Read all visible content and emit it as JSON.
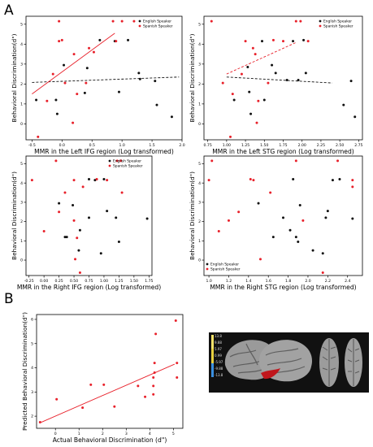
{
  "panel_labels": [
    "A",
    "B"
  ],
  "colors": {
    "english": "#111111",
    "spanish": "#e8202a",
    "fit_all": "#111111",
    "fit_spanish": "#e8202a",
    "brain_highlight": "#c0171d"
  },
  "colorbar": {
    "labels": [
      "13.8",
      "9.88",
      "5.97",
      "0.99",
      "-5.97",
      "-9.88",
      "-13.8"
    ]
  },
  "chart_data": [
    {
      "id": "ifg_left",
      "type": "scatter",
      "xlabel": "MMR in the Left IFG region (Log transformed)",
      "ylabel": "Behavioral Discrimination(d\")",
      "xlim": [
        -0.6,
        2.0
      ],
      "ylim": [
        -0.8,
        5.4
      ],
      "xticks": [
        -0.5,
        0.0,
        0.5,
        1.0,
        1.5,
        2.0
      ],
      "xticklabels": [
        "-0.5",
        "0.0",
        "0.5",
        "1.0",
        "1.5",
        "2.0"
      ],
      "yticks": [
        0,
        1,
        2,
        3,
        4,
        5
      ],
      "legend": {
        "position": "top-right",
        "entries": [
          "English Speaker",
          "Spanish Speaker"
        ]
      },
      "series": [
        {
          "name": "English Speaker",
          "color": "#111111",
          "points": [
            [
              -0.43,
              1.2
            ],
            [
              -0.1,
              1.2
            ],
            [
              -0.08,
              0.5
            ],
            [
              0.03,
              2.95
            ],
            [
              0.38,
              1.55
            ],
            [
              0.42,
              2.8
            ],
            [
              0.63,
              4.2
            ],
            [
              0.88,
              4.15
            ],
            [
              0.95,
              1.6
            ],
            [
              1.1,
              4.2
            ],
            [
              1.28,
              2.55
            ],
            [
              1.3,
              2.25
            ],
            [
              1.55,
              2.15
            ],
            [
              1.58,
              0.95
            ],
            [
              1.83,
              0.35
            ]
          ]
        },
        {
          "name": "Spanish Speaker",
          "color": "#e8202a",
          "points": [
            [
              -0.4,
              -0.65
            ],
            [
              -0.25,
              1.15
            ],
            [
              -0.15,
              2.5
            ],
            [
              -0.05,
              5.15
            ],
            [
              -0.05,
              4.15
            ],
            [
              0.0,
              4.2
            ],
            [
              0.05,
              2.05
            ],
            [
              0.18,
              0.05
            ],
            [
              0.2,
              3.5
            ],
            [
              0.25,
              1.5
            ],
            [
              0.4,
              2.05
            ],
            [
              0.45,
              3.8
            ],
            [
              0.53,
              3.6
            ],
            [
              0.85,
              5.15
            ],
            [
              0.9,
              4.15
            ],
            [
              1.0,
              5.15
            ],
            [
              1.2,
              5.15
            ]
          ]
        }
      ],
      "fits": [
        {
          "name": "All",
          "style": "dashed",
          "color": "#111111",
          "x": [
            -0.5,
            1.95
          ],
          "y": [
            2.08,
            2.35
          ]
        },
        {
          "name": "Spanish",
          "style": "solid",
          "color": "#e8202a",
          "x": [
            -0.5,
            0.88
          ],
          "y": [
            1.5,
            4.55
          ]
        }
      ]
    },
    {
      "id": "stg_left",
      "type": "scatter",
      "xlabel": "MMR in the Left STG region (Log transformed)",
      "ylabel": "Behavioral Discrimination(d\")",
      "xlim": [
        0.7,
        2.8
      ],
      "ylim": [
        -0.8,
        5.4
      ],
      "xticks": [
        0.75,
        1.0,
        1.25,
        1.5,
        1.75,
        2.0,
        2.25,
        2.5,
        2.75
      ],
      "xticklabels": [
        "0.75",
        "1.00",
        "1.25",
        "1.50",
        "1.75",
        "2.00",
        "2.25",
        "2.50",
        "2.75"
      ],
      "yticks": [
        0,
        1,
        2,
        3,
        4,
        5
      ],
      "legend": {
        "position": "top-right",
        "entries": [
          "English Speaker",
          "Spanish Speaker"
        ]
      },
      "series": [
        {
          "name": "English Speaker",
          "color": "#111111",
          "points": [
            [
              1.1,
              1.2
            ],
            [
              1.28,
              2.85
            ],
            [
              1.3,
              1.6
            ],
            [
              1.32,
              0.5
            ],
            [
              1.47,
              4.15
            ],
            [
              1.5,
              1.2
            ],
            [
              1.6,
              2.95
            ],
            [
              1.65,
              2.55
            ],
            [
              1.8,
              2.2
            ],
            [
              1.88,
              4.15
            ],
            [
              1.95,
              2.2
            ],
            [
              2.02,
              4.2
            ],
            [
              2.05,
              2.55
            ],
            [
              2.55,
              0.95
            ],
            [
              2.65,
              2.15
            ],
            [
              2.7,
              0.35
            ]
          ]
        },
        {
          "name": "Spanish Speaker",
          "color": "#e8202a",
          "points": [
            [
              0.8,
              5.15
            ],
            [
              0.95,
              2.05
            ],
            [
              1.05,
              -0.65
            ],
            [
              1.08,
              1.5
            ],
            [
              1.2,
              2.5
            ],
            [
              1.25,
              4.15
            ],
            [
              1.35,
              3.8
            ],
            [
              1.38,
              3.5
            ],
            [
              1.4,
              0.05
            ],
            [
              1.42,
              1.15
            ],
            [
              1.55,
              2.05
            ],
            [
              1.62,
              4.2
            ],
            [
              1.75,
              4.15
            ],
            [
              1.92,
              5.15
            ],
            [
              1.98,
              5.15
            ],
            [
              2.08,
              4.15
            ]
          ]
        }
      ],
      "fits": [
        {
          "name": "All",
          "style": "dashed",
          "color": "#111111",
          "x": [
            1.0,
            2.4
          ],
          "y": [
            2.35,
            2.05
          ]
        },
        {
          "name": "Spanish",
          "style": "dashed",
          "color": "#e8202a",
          "x": [
            1.0,
            1.93
          ],
          "y": [
            2.5,
            4.1
          ]
        }
      ]
    },
    {
      "id": "ifg_right",
      "type": "scatter",
      "xlabel": "MMR in the Right IFG region (Log transformed)",
      "ylabel": "Behavioral Discrimination(d\")",
      "xlim": [
        -0.3,
        1.8
      ],
      "ylim": [
        -0.8,
        5.4
      ],
      "xticks": [
        -0.25,
        0.0,
        0.25,
        0.5,
        0.75,
        1.0,
        1.25,
        1.5,
        1.75
      ],
      "xticklabels": [
        "-0.25",
        "0.00",
        "0.25",
        "0.50",
        "0.75",
        "1.00",
        "1.25",
        "1.50",
        "1.75"
      ],
      "yticks": [
        0,
        1,
        2,
        3,
        4,
        5
      ],
      "legend": {
        "position": "top-right",
        "entries": [
          "English Speaker",
          "Spanish Speaker"
        ]
      },
      "series": [
        {
          "name": "English Speaker",
          "color": "#111111",
          "points": [
            [
              0.25,
              2.95
            ],
            [
              0.35,
              1.2
            ],
            [
              0.38,
              1.2
            ],
            [
              0.48,
              2.85
            ],
            [
              0.58,
              0.5
            ],
            [
              0.6,
              1.55
            ],
            [
              0.75,
              2.2
            ],
            [
              0.75,
              4.2
            ],
            [
              0.85,
              4.15
            ],
            [
              0.95,
              0.35
            ],
            [
              1.0,
              4.2
            ],
            [
              1.05,
              2.55
            ],
            [
              1.2,
              2.2
            ],
            [
              1.25,
              0.95
            ],
            [
              1.72,
              2.15
            ]
          ]
        },
        {
          "name": "Spanish Speaker",
          "color": "#e8202a",
          "points": [
            [
              -0.2,
              4.15
            ],
            [
              0.0,
              1.5
            ],
            [
              0.2,
              5.15
            ],
            [
              0.25,
              2.5
            ],
            [
              0.35,
              3.5
            ],
            [
              0.5,
              4.15
            ],
            [
              0.5,
              2.05
            ],
            [
              0.52,
              0.05
            ],
            [
              0.55,
              1.15
            ],
            [
              0.6,
              -0.65
            ],
            [
              0.65,
              3.8
            ],
            [
              0.88,
              4.2
            ],
            [
              1.05,
              4.15
            ],
            [
              1.22,
              5.15
            ],
            [
              1.28,
              5.15
            ],
            [
              1.3,
              3.5
            ]
          ]
        }
      ],
      "fits": []
    },
    {
      "id": "stg_right",
      "type": "scatter",
      "xlabel": "MMR in the Right STG region (Log transformed)",
      "ylabel": "Behavioral Discrimination(d\")",
      "xlim": [
        0.95,
        2.55
      ],
      "ylim": [
        -0.8,
        5.4
      ],
      "xticks": [
        1.0,
        1.2,
        1.4,
        1.6,
        1.8,
        2.0,
        2.2,
        2.4
      ],
      "xticklabels": [
        "1.0",
        "1.2",
        "1.4",
        "1.6",
        "1.8",
        "2.0",
        "2.2",
        "2.4"
      ],
      "yticks": [
        0,
        1,
        2,
        3,
        4,
        5
      ],
      "legend": {
        "position": "bottom-left",
        "entries": [
          "English Speaker",
          "Spanish Speaker"
        ]
      },
      "series": [
        {
          "name": "English Speaker",
          "color": "#111111",
          "points": [
            [
              1.5,
              2.95
            ],
            [
              1.65,
              1.2
            ],
            [
              1.75,
              2.2
            ],
            [
              1.82,
              1.55
            ],
            [
              1.85,
              4.2
            ],
            [
              1.88,
              1.2
            ],
            [
              1.9,
              0.95
            ],
            [
              1.92,
              2.85
            ],
            [
              2.05,
              0.5
            ],
            [
              2.15,
              0.35
            ],
            [
              2.18,
              2.2
            ],
            [
              2.2,
              2.55
            ],
            [
              2.25,
              4.15
            ],
            [
              2.32,
              4.2
            ],
            [
              2.45,
              2.15
            ]
          ]
        },
        {
          "name": "Spanish Speaker",
          "color": "#e8202a",
          "points": [
            [
              1.0,
              4.15
            ],
            [
              1.03,
              5.15
            ],
            [
              1.1,
              1.5
            ],
            [
              1.2,
              2.05
            ],
            [
              1.3,
              2.5
            ],
            [
              1.42,
              4.2
            ],
            [
              1.45,
              4.15
            ],
            [
              1.52,
              0.05
            ],
            [
              1.62,
              3.5
            ],
            [
              1.88,
              5.15
            ],
            [
              1.95,
              2.05
            ],
            [
              2.15,
              -0.65
            ],
            [
              2.3,
              5.15
            ],
            [
              2.45,
              3.8
            ],
            [
              2.45,
              4.15
            ]
          ]
        }
      ],
      "fits": []
    },
    {
      "id": "prediction",
      "type": "scatter",
      "xlabel": "Actual Behavioral Discrimination (d\")",
      "ylabel": "Predicted Behavioral Discrimination(d\")",
      "xlim": [
        -0.8,
        5.4
      ],
      "ylim": [
        1.5,
        6.2
      ],
      "xticks": [
        0,
        1,
        2,
        3,
        4,
        5
      ],
      "xticklabels": [
        "0",
        "1",
        "2",
        "3",
        "4",
        "5"
      ],
      "yticks": [
        2,
        3,
        4,
        5,
        6
      ],
      "yticklabels": [
        "2",
        "3",
        "4",
        "5",
        "6"
      ],
      "legend": null,
      "series": [
        {
          "name": "",
          "color": "#e8202a",
          "points": [
            [
              -0.65,
              1.75
            ],
            [
              0.05,
              2.7
            ],
            [
              1.15,
              2.35
            ],
            [
              1.5,
              3.3
            ],
            [
              2.05,
              3.3
            ],
            [
              2.5,
              2.4
            ],
            [
              3.5,
              3.25
            ],
            [
              3.8,
              2.8
            ],
            [
              4.15,
              3.6
            ],
            [
              4.2,
              4.2
            ],
            [
              4.15,
              3.25
            ],
            [
              4.15,
              2.9
            ],
            [
              4.2,
              3.8
            ],
            [
              4.25,
              5.4
            ],
            [
              5.1,
              5.95
            ],
            [
              5.15,
              3.6
            ],
            [
              5.15,
              4.2
            ]
          ]
        }
      ],
      "fits": [
        {
          "name": "Fit",
          "style": "solid",
          "color": "#e8202a",
          "x": [
            -0.6,
            5.05
          ],
          "y": [
            1.75,
            4.15
          ]
        }
      ]
    }
  ]
}
